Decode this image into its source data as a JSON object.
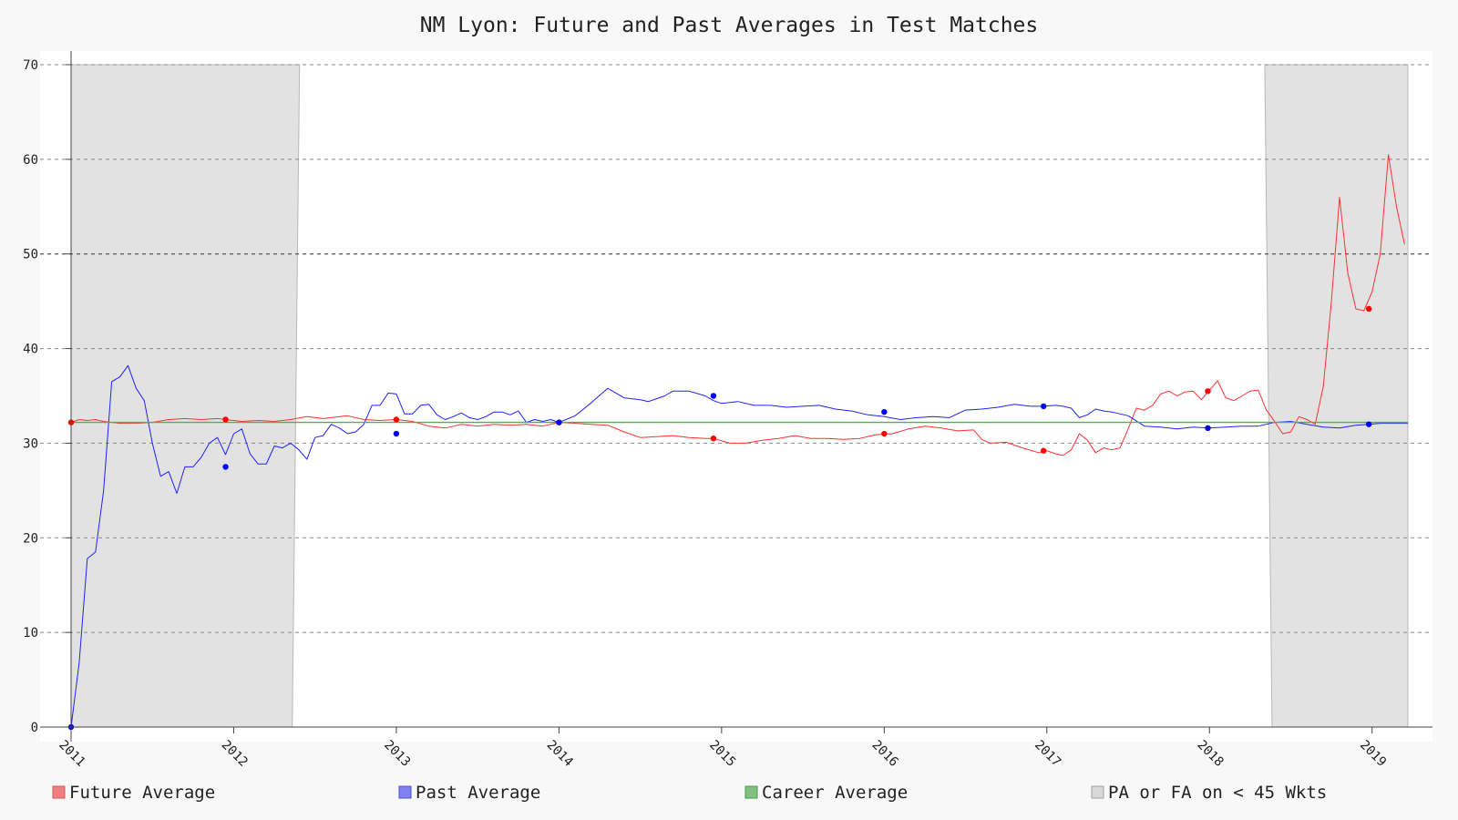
{
  "chart_data": {
    "type": "line",
    "title": "NM Lyon: Future and Past Averages in Test Matches",
    "xlabel": "",
    "ylabel": "",
    "xlim": [
      2011.0,
      2019.22
    ],
    "ylim": [
      0,
      70
    ],
    "yticks": [
      0,
      10,
      20,
      30,
      40,
      50,
      60,
      70
    ],
    "xtick_labels": [
      "2011",
      "2012",
      "2013",
      "2014",
      "2015",
      "2016",
      "2017",
      "2018",
      "2019"
    ],
    "grid": true,
    "legend_position": "bottom",
    "legend": [
      {
        "label": "Future Average",
        "color": "#f08080"
      },
      {
        "label": "Past Average",
        "color": "#8080f0"
      },
      {
        "label": "Career Average",
        "color": "#80c080"
      },
      {
        "label": "PA or FA on < 45 Wkts",
        "color": "#d8d8d8"
      }
    ],
    "shaded_regions": [
      {
        "label": "PA or FA on < 45 Wkts",
        "x_start": 2011.0,
        "x_end": 2012.36
      },
      {
        "label": "PA or FA on < 45 Wkts",
        "x_start": 2018.34,
        "x_end": 2019.22
      }
    ],
    "series": [
      {
        "name": "Future Average",
        "color": "#ff3030",
        "x": [
          2011.0,
          2011.05,
          2011.1,
          2011.15,
          2011.2,
          2011.3,
          2011.4,
          2011.5,
          2011.6,
          2011.7,
          2011.8,
          2011.9,
          2011.95,
          2012.05,
          2012.15,
          2012.25,
          2012.35,
          2012.45,
          2012.55,
          2012.6,
          2012.7,
          2012.8,
          2012.9,
          2013.0,
          2013.1,
          2013.2,
          2013.3,
          2013.4,
          2013.5,
          2013.6,
          2013.7,
          2013.8,
          2013.9,
          2014.0,
          2014.1,
          2014.2,
          2014.3,
          2014.4,
          2014.5,
          2014.6,
          2014.7,
          2014.8,
          2014.9,
          2014.95,
          2015.05,
          2015.15,
          2015.25,
          2015.35,
          2015.45,
          2015.55,
          2015.65,
          2015.75,
          2015.85,
          2015.95,
          2016.05,
          2016.15,
          2016.25,
          2016.35,
          2016.45,
          2016.55,
          2016.6,
          2016.65,
          2016.75,
          2016.85,
          2016.95,
          2017.0,
          2017.05,
          2017.1,
          2017.15,
          2017.2,
          2017.25,
          2017.3,
          2017.35,
          2017.4,
          2017.45,
          2017.5,
          2017.55,
          2017.6,
          2017.65,
          2017.7,
          2017.75,
          2017.8,
          2017.85,
          2017.9,
          2017.95,
          2017.99,
          2018.05,
          2018.1,
          2018.15,
          2018.2,
          2018.25,
          2018.3,
          2018.35,
          2018.4,
          2018.45,
          2018.5,
          2018.55,
          2018.6,
          2018.65,
          2018.7,
          2018.75,
          2018.8,
          2018.85,
          2018.9,
          2018.95,
          2019.0,
          2019.05,
          2019.1,
          2019.15,
          2019.2
        ],
        "y": [
          32.2,
          32.5,
          32.4,
          32.5,
          32.3,
          32.1,
          32.1,
          32.2,
          32.5,
          32.6,
          32.5,
          32.6,
          32.5,
          32.3,
          32.4,
          32.3,
          32.5,
          32.8,
          32.6,
          32.7,
          32.9,
          32.5,
          32.4,
          32.5,
          32.3,
          31.8,
          31.6,
          32.0,
          31.8,
          32.0,
          31.9,
          32.0,
          31.8,
          32.2,
          32.1,
          32.0,
          31.9,
          31.2,
          30.6,
          30.7,
          30.8,
          30.6,
          30.5,
          30.5,
          30.0,
          30.0,
          30.3,
          30.5,
          30.8,
          30.5,
          30.5,
          30.4,
          30.5,
          30.9,
          31.0,
          31.5,
          31.8,
          31.6,
          31.3,
          31.4,
          30.4,
          30.0,
          30.1,
          29.5,
          29.0,
          29.2,
          28.9,
          28.7,
          29.3,
          31.0,
          30.3,
          29.0,
          29.5,
          29.3,
          29.5,
          31.5,
          33.7,
          33.5,
          34.0,
          35.2,
          35.5,
          35.0,
          35.4,
          35.5,
          34.6,
          35.4,
          36.6,
          34.8,
          34.5,
          35.0,
          35.5,
          35.6,
          33.5,
          32.3,
          31.0,
          31.2,
          32.8,
          32.5,
          32.0,
          36.0,
          45.0,
          56.0,
          48.0,
          44.2,
          44.0,
          46.0,
          50.0,
          60.5,
          55.0,
          51.0
        ],
        "markers": [
          [
            2011.0,
            32.2
          ],
          [
            2011.95,
            32.5
          ],
          [
            2013.0,
            32.5
          ],
          [
            2014.0,
            32.2
          ],
          [
            2014.95,
            30.5
          ],
          [
            2016.0,
            31.0
          ],
          [
            2016.98,
            29.2
          ],
          [
            2017.99,
            35.5
          ],
          [
            2018.98,
            44.2
          ]
        ]
      },
      {
        "name": "Past Average",
        "color": "#2020ff",
        "x": [
          2011.0,
          2011.05,
          2011.1,
          2011.15,
          2011.2,
          2011.25,
          2011.3,
          2011.35,
          2011.4,
          2011.45,
          2011.5,
          2011.55,
          2011.6,
          2011.65,
          2011.7,
          2011.75,
          2011.8,
          2011.85,
          2011.9,
          2011.95,
          2012.0,
          2012.05,
          2012.1,
          2012.15,
          2012.2,
          2012.25,
          2012.3,
          2012.35,
          2012.4,
          2012.45,
          2012.5,
          2012.55,
          2012.6,
          2012.65,
          2012.7,
          2012.75,
          2012.8,
          2012.85,
          2012.9,
          2012.95,
          2013.0,
          2013.05,
          2013.1,
          2013.15,
          2013.2,
          2013.25,
          2013.3,
          2013.35,
          2013.4,
          2013.45,
          2013.5,
          2013.55,
          2013.6,
          2013.65,
          2013.7,
          2013.75,
          2013.8,
          2013.85,
          2013.9,
          2013.95,
          2014.0,
          2014.1,
          2014.2,
          2014.3,
          2014.4,
          2014.5,
          2014.55,
          2014.6,
          2014.65,
          2014.7,
          2014.8,
          2014.9,
          2014.95,
          2015.0,
          2015.1,
          2015.2,
          2015.3,
          2015.4,
          2015.5,
          2015.6,
          2015.7,
          2015.8,
          2015.9,
          2016.0,
          2016.1,
          2016.2,
          2016.3,
          2016.4,
          2016.5,
          2016.6,
          2016.7,
          2016.8,
          2016.9,
          2016.98,
          2017.05,
          2017.1,
          2017.15,
          2017.2,
          2017.25,
          2017.3,
          2017.35,
          2017.4,
          2017.5,
          2017.6,
          2017.7,
          2017.8,
          2017.9,
          2017.99,
          2018.1,
          2018.2,
          2018.3,
          2018.4,
          2018.5,
          2018.6,
          2018.7,
          2018.8,
          2018.9,
          2018.98,
          2019.05,
          2019.1,
          2019.15,
          2019.22
        ],
        "y": [
          0,
          6.8,
          17.8,
          18.5,
          25.0,
          36.5,
          37.0,
          38.2,
          35.8,
          34.5,
          30.0,
          26.5,
          27.0,
          24.7,
          27.5,
          27.5,
          28.5,
          30.0,
          30.6,
          28.8,
          31.0,
          31.5,
          28.9,
          27.8,
          27.8,
          29.7,
          29.5,
          30.0,
          29.3,
          28.3,
          30.6,
          30.8,
          32.0,
          31.6,
          31.0,
          31.2,
          32.0,
          34.0,
          34.0,
          35.3,
          35.2,
          33.1,
          33.1,
          34.0,
          34.1,
          33.0,
          32.5,
          32.8,
          33.2,
          32.7,
          32.5,
          32.8,
          33.3,
          33.3,
          33.0,
          33.4,
          32.2,
          32.5,
          32.3,
          32.5,
          32.2,
          32.9,
          34.3,
          35.8,
          34.8,
          34.6,
          34.4,
          34.7,
          35.0,
          35.5,
          35.5,
          35.0,
          34.5,
          34.2,
          34.4,
          34.0,
          34.0,
          33.8,
          33.9,
          34.0,
          33.6,
          33.4,
          33.0,
          32.8,
          32.5,
          32.7,
          32.8,
          32.7,
          33.5,
          33.6,
          33.8,
          34.1,
          33.9,
          33.9,
          34.0,
          33.9,
          33.7,
          32.7,
          33.0,
          33.6,
          33.4,
          33.3,
          32.9,
          31.8,
          31.7,
          31.5,
          31.7,
          31.6,
          31.7,
          31.8,
          31.8,
          32.2,
          32.3,
          32.0,
          31.7,
          31.6,
          31.9,
          32.0,
          32.1,
          32.1,
          32.1,
          32.1
        ],
        "markers": [
          [
            2011.0,
            0
          ],
          [
            2011.95,
            27.5
          ],
          [
            2013.0,
            31.0
          ],
          [
            2014.0,
            32.2
          ],
          [
            2014.95,
            35.0
          ],
          [
            2016.0,
            33.3
          ],
          [
            2016.98,
            33.9
          ],
          [
            2017.99,
            31.6
          ],
          [
            2018.98,
            32.0
          ]
        ]
      },
      {
        "name": "Career Average",
        "color": "#50b050",
        "x": [
          2011.0,
          2019.22
        ],
        "y": [
          32.2,
          32.2
        ]
      }
    ]
  }
}
